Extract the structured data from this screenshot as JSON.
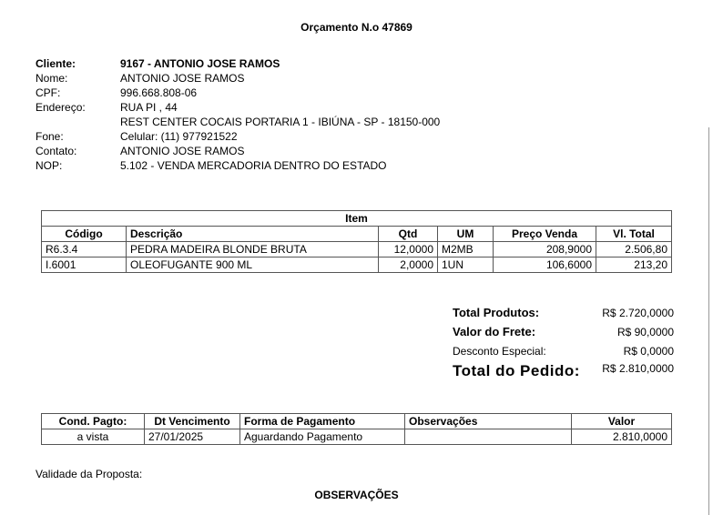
{
  "title": "Orçamento N.o 47869",
  "client": {
    "cliente_label": "Cliente:",
    "cliente": "9167 - ANTONIO JOSE RAMOS",
    "nome_label": "Nome:",
    "nome": "ANTONIO JOSE RAMOS",
    "cpf_label": "CPF:",
    "cpf": "996.668.808-06",
    "endereco_label": "Endereço:",
    "endereco1": "RUA PI , 44",
    "endereco2": "REST CENTER COCAIS PORTARIA 1 - IBIÚNA - SP - 18150-000",
    "fone_label": "Fone:",
    "fone": "Celular: (11) 977921522",
    "contato_label": "Contato:",
    "contato": "ANTONIO JOSE RAMOS",
    "nop_label": "NOP:",
    "nop": "5.102 - VENDA MERCADORIA DENTRO DO ESTADO"
  },
  "items": {
    "caption": "Item",
    "headers": [
      "Código",
      "Descrição",
      "Qtd",
      "UM",
      "Preço Venda",
      "Vl. Total"
    ],
    "rows": [
      [
        "R6.3.4",
        "PEDRA MADEIRA BLONDE BRUTA",
        "12,0000",
        "M2MB",
        "208,9000",
        "2.506,80"
      ],
      [
        "I.6001",
        "OLEOFUGANTE 900 ML",
        "2,0000",
        "1UN",
        "106,6000",
        "213,20"
      ]
    ]
  },
  "totals": {
    "produtos_label": "Total Produtos:",
    "produtos": "R$ 2.720,0000",
    "frete_label": "Valor do Frete:",
    "frete": "R$ 90,0000",
    "desconto_label": "Desconto Especial:",
    "desconto": "R$ 0,0000",
    "pedido_label": "Total do Pedido:",
    "pedido": "R$ 2.810,0000"
  },
  "payment": {
    "headers": [
      "Cond. Pagto:",
      "Dt Vencimento",
      "Forma de Pagamento",
      "Observações",
      "Valor"
    ],
    "rows": [
      [
        "a vista",
        "27/01/2025",
        "Aguardando Pagamento",
        "",
        "2.810,0000"
      ]
    ]
  },
  "validade_label": "Validade da Proposta:",
  "observacoes_label": "OBSERVAÇÕES"
}
